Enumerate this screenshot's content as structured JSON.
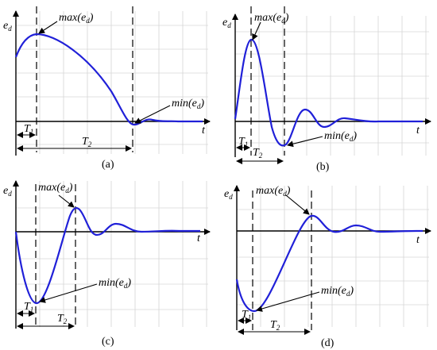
{
  "colors": {
    "curve": "#2020d8",
    "grid": "#d6d6d6",
    "axis": "#000000"
  },
  "panels": [
    {
      "id": "a",
      "caption": "(a)",
      "axis_y": "e",
      "axis_y_sub": "d",
      "axis_x": "t",
      "max_label": "max(e",
      "max_sub": "d",
      "max_close": ")",
      "min_label": "min(e",
      "min_sub": "d",
      "min_close": ")",
      "t1_label": "T",
      "t1_sub": "1",
      "t2_label": "T",
      "t2_sub": "2"
    },
    {
      "id": "b",
      "caption": "(b)",
      "axis_y": "e",
      "axis_y_sub": "d",
      "axis_x": "t",
      "max_label": "max(e",
      "max_sub": "d",
      "max_close": ")",
      "min_label": "min(e",
      "min_sub": "d",
      "min_close": ")",
      "t1_label": "T",
      "t1_sub": "1",
      "t2_label": "T",
      "t2_sub": "2"
    },
    {
      "id": "c",
      "caption": "(c)",
      "axis_y": "e",
      "axis_y_sub": "d",
      "axis_x": "t",
      "max_label": "max(e",
      "max_sub": "d",
      "max_close": ")",
      "min_label": "min(e",
      "min_sub": "d",
      "min_close": ")",
      "t1_label": "T",
      "t1_sub": "1",
      "t2_label": "T",
      "t2_sub": "2"
    },
    {
      "id": "d",
      "caption": "(d)",
      "axis_y": "e",
      "axis_y_sub": "d",
      "axis_x": "t",
      "max_label": "max(e",
      "max_sub": "d",
      "max_close": ")",
      "min_label": "min(e",
      "min_sub": "d",
      "min_close": ")",
      "t1_label": "T",
      "t1_sub": "1",
      "t2_label": "T",
      "t2_sub": "2"
    }
  ]
}
